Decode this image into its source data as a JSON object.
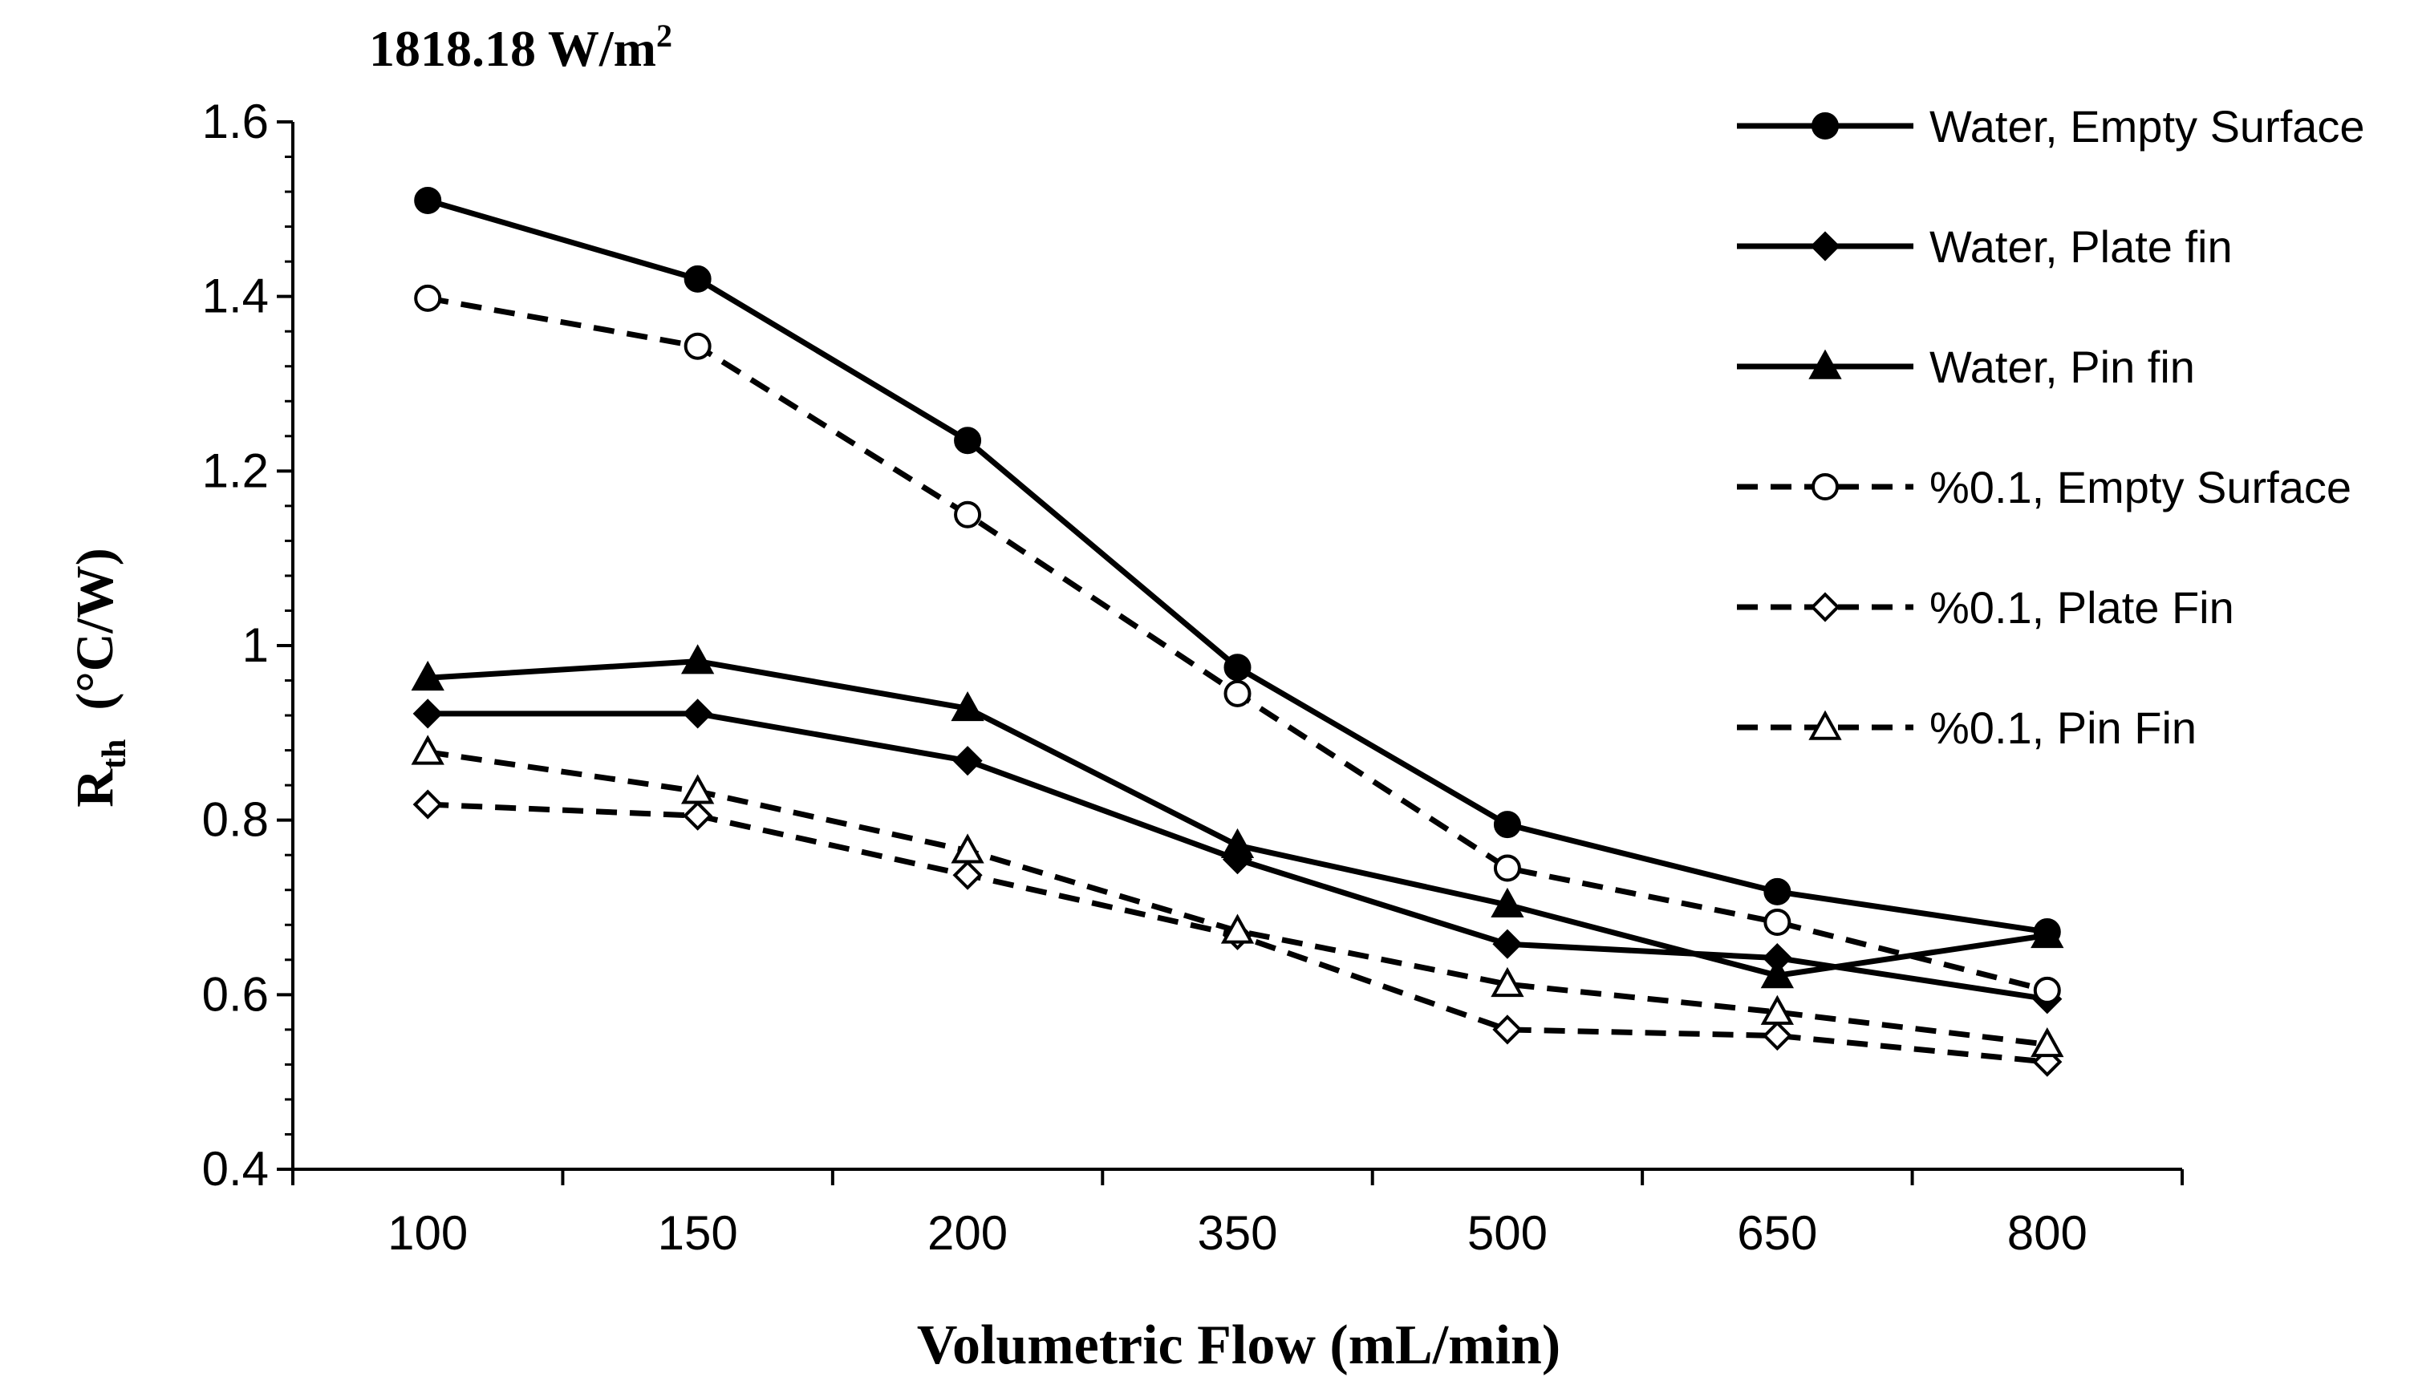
{
  "chart_data": {
    "type": "line",
    "title": "1818.18 W/m",
    "title_superscript": "2",
    "xlabel": "Volumetric Flow (mL/min)",
    "ylabel_main": "R",
    "ylabel_sub": "th",
    "ylabel_units": "(°C/W)",
    "categories": [
      "100",
      "150",
      "200",
      "350",
      "500",
      "650",
      "800"
    ],
    "ylim": [
      0.4,
      1.6
    ],
    "yticks": [
      "0.4",
      "0.6",
      "0.8",
      "1",
      "1.2",
      "1.4",
      "1.6"
    ],
    "legend_position": "right",
    "series": [
      {
        "name": "Water, Empty Surface",
        "marker": "circle",
        "filled": true,
        "dashed": false,
        "values": [
          1.51,
          1.42,
          1.235,
          0.975,
          0.795,
          0.718,
          0.672
        ]
      },
      {
        "name": "Water, Plate fin",
        "marker": "diamond",
        "filled": true,
        "dashed": false,
        "values": [
          0.922,
          0.922,
          0.868,
          0.755,
          0.658,
          0.642,
          0.595
        ]
      },
      {
        "name": "Water, Pin fin",
        "marker": "triangle",
        "filled": true,
        "dashed": false,
        "values": [
          0.963,
          0.982,
          0.928,
          0.771,
          0.703,
          0.622,
          0.668
        ]
      },
      {
        "name": "%0.1, Empty Surface",
        "marker": "circle",
        "filled": false,
        "dashed": true,
        "values": [
          1.398,
          1.343,
          1.15,
          0.945,
          0.745,
          0.683,
          0.605
        ]
      },
      {
        "name": "%0.1, Plate Fin",
        "marker": "diamond",
        "filled": false,
        "dashed": true,
        "values": [
          0.818,
          0.805,
          0.737,
          0.668,
          0.56,
          0.553,
          0.523
        ]
      },
      {
        "name": "%0.1, Pin Fin",
        "marker": "triangle",
        "filled": false,
        "dashed": true,
        "values": [
          0.878,
          0.833,
          0.765,
          0.673,
          0.612,
          0.58,
          0.543
        ]
      }
    ]
  }
}
